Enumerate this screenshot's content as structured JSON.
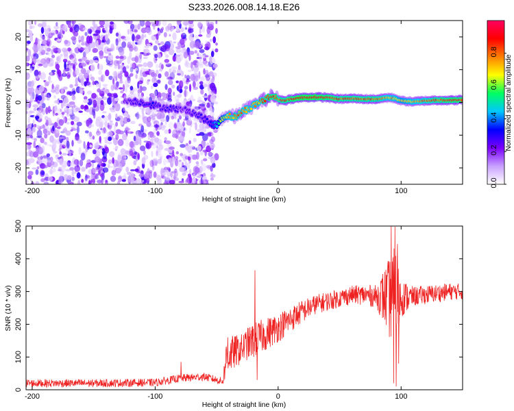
{
  "title": "S233.2026.008.14.18.E26",
  "chart_data": [
    {
      "type": "heatmap",
      "name": "spectrogram",
      "xlabel": "Height of straight line (km)",
      "ylabel": "Frequency (Hz)",
      "xlim": [
        -205,
        150
      ],
      "ylim": [
        -25,
        25
      ],
      "xticks": [
        -200,
        -100,
        0,
        100
      ],
      "yticks": [
        -20,
        -10,
        0,
        10,
        20
      ],
      "signal_track": {
        "description": "dominant spectral ridge (frequency in Hz vs height in km)",
        "x": [
          -125,
          -115,
          -105,
          -95,
          -85,
          -78,
          -70,
          -62,
          -55,
          -50,
          -45,
          -40,
          -35,
          -30,
          -25,
          -20,
          -15,
          -10,
          -5,
          0,
          5,
          10,
          20,
          30,
          40,
          50,
          60,
          70,
          80,
          90,
          95,
          100,
          110,
          120,
          130,
          140,
          150
        ],
        "y": [
          0.5,
          0.3,
          -0.5,
          -1.5,
          -2.0,
          -2.0,
          -3.0,
          -4.5,
          -6.5,
          -7.0,
          -4.5,
          -4.0,
          -4.5,
          -3.0,
          -2.0,
          -1.0,
          0.2,
          1.0,
          2.0,
          1.0,
          0.5,
          1.0,
          1.5,
          1.6,
          1.5,
          1.0,
          1.2,
          1.0,
          1.0,
          1.5,
          1.2,
          0.5,
          0.2,
          0.5,
          0.7,
          0.6,
          0.8
        ],
        "amplitude": [
          0.25,
          0.3,
          0.35,
          0.3,
          0.3,
          0.25,
          0.3,
          0.3,
          0.35,
          0.5,
          0.7,
          0.8,
          0.85,
          0.85,
          0.8,
          0.8,
          0.85,
          0.9,
          0.95,
          0.9,
          0.9,
          0.95,
          1.0,
          1.0,
          0.95,
          0.9,
          0.9,
          0.9,
          0.9,
          0.8,
          0.8,
          0.75,
          0.8,
          0.85,
          0.9,
          0.95,
          0.95
        ]
      },
      "noise_region": {
        "x_from": -205,
        "x_to": -50,
        "amplitude_range": [
          0.0,
          0.25
        ]
      },
      "colorbar": {
        "label": "Normalized spectral amplitude",
        "range": [
          0,
          1
        ],
        "ticks": [
          "0.0",
          "0.2",
          "0.4",
          "0.6",
          "0.8"
        ],
        "colormap": [
          "#ffffff",
          "#c8a0ff",
          "#7a00ff",
          "#0000ff",
          "#00c8ff",
          "#00ff60",
          "#ffff00",
          "#ff8000",
          "#ff0000",
          "#ff0060"
        ]
      }
    },
    {
      "type": "line",
      "name": "snr",
      "xlabel": "Height of straight line (km)",
      "ylabel": "SNR (10 * v/v)",
      "xlim": [
        -205,
        150
      ],
      "ylim": [
        0,
        500
      ],
      "xticks": [
        -200,
        -100,
        0,
        100
      ],
      "yticks": [
        0,
        100,
        200,
        300,
        400,
        500
      ],
      "color": "#ee2020",
      "series": [
        {
          "name": "SNR",
          "trend_x": [
            -205,
            -150,
            -100,
            -80,
            -60,
            -45,
            -42,
            -38,
            -30,
            -25,
            -20,
            -15,
            -10,
            -5,
            0,
            10,
            20,
            30,
            40,
            50,
            60,
            70,
            80,
            85,
            90,
            95,
            100,
            110,
            120,
            130,
            140,
            150
          ],
          "trend_y": [
            20,
            20,
            22,
            35,
            40,
            25,
            100,
            110,
            125,
            140,
            150,
            160,
            170,
            180,
            190,
            215,
            240,
            260,
            270,
            280,
            290,
            290,
            285,
            285,
            280,
            270,
            280,
            285,
            290,
            295,
            300,
            300
          ],
          "spread_x": [
            -205,
            -45,
            -42,
            -30,
            -20,
            0,
            30,
            60,
            80,
            90,
            95,
            100,
            110,
            150
          ],
          "spread_y": [
            12,
            12,
            60,
            45,
            55,
            45,
            30,
            28,
            35,
            120,
            170,
            60,
            30,
            25
          ],
          "spikes_x": [
            -79,
            -41,
            -19,
            -17,
            92,
            94,
            95,
            96,
            97,
            98
          ],
          "spikes_y": [
            85,
            160,
            365,
            30,
            500,
            20,
            498,
            10,
            445,
            80
          ]
        }
      ]
    }
  ]
}
